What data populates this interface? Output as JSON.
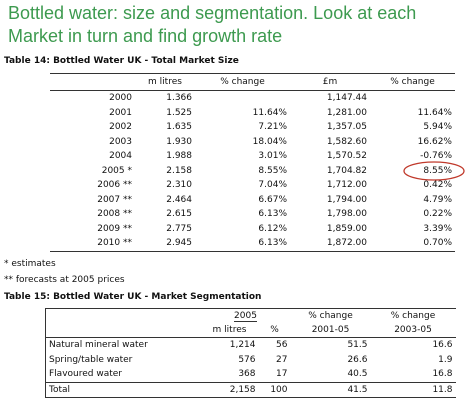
{
  "header": {
    "title_lines": [
      "Bottled water: size and segmentation. Look at each",
      "Market in turn and find growth rate"
    ]
  },
  "table14": {
    "caption": "Table 14: Bottled Water UK - Total Market Size",
    "columns": [
      "m litres",
      "% change",
      "£m",
      "% change"
    ],
    "rows": [
      [
        "2000",
        "1.366",
        null,
        "1,147.44",
        null
      ],
      [
        "2001",
        "1.525",
        "11.64%",
        "1,281.00",
        "11.64%"
      ],
      [
        "2002",
        "1.635",
        "7.21%",
        "1,357.05",
        "5.94%"
      ],
      [
        "2003",
        "1.930",
        "18.04%",
        "1,582.60",
        "16.62%"
      ],
      [
        "2004",
        "1.988",
        "3.01%",
        "1,570.52",
        "-0.76%"
      ],
      [
        "2005 *",
        "2.158",
        "8.55%",
        "1,704.82",
        "8.55%"
      ],
      [
        "2006 **",
        "2.310",
        "7.04%",
        "1,712.00",
        "0.42%"
      ],
      [
        "2007 **",
        "2.464",
        "6.67%",
        "1,794.00",
        "4.79%"
      ],
      [
        "2008 **",
        "2.615",
        "6.13%",
        "1,798.00",
        "0.22%"
      ],
      [
        "2009 **",
        "2.775",
        "6.12%",
        "1,859.00",
        "3.39%"
      ],
      [
        "2010 **",
        "2.945",
        "6.13%",
        "1,872.00",
        "0.70%"
      ]
    ],
    "notes": [
      "* estimates",
      "** forecasts at 2005 prices"
    ]
  },
  "table15": {
    "caption": "Table 15: Bottled Water UK - Market Segmentation",
    "header_top": [
      "2005",
      "% change",
      "% change"
    ],
    "header_sub": [
      "m litres",
      "%",
      "2001-05",
      "2003-05"
    ],
    "rows": [
      [
        "Natural mineral water",
        "1,214",
        "56",
        "51.5",
        "16.6"
      ],
      [
        "Spring/table water",
        "576",
        "27",
        "26.6",
        "1.9"
      ],
      [
        "Flavoured water",
        "368",
        "17",
        "40.5",
        "16.8"
      ],
      [
        "Total",
        "2,158",
        "100",
        "41.5",
        "11.8"
      ]
    ]
  }
}
